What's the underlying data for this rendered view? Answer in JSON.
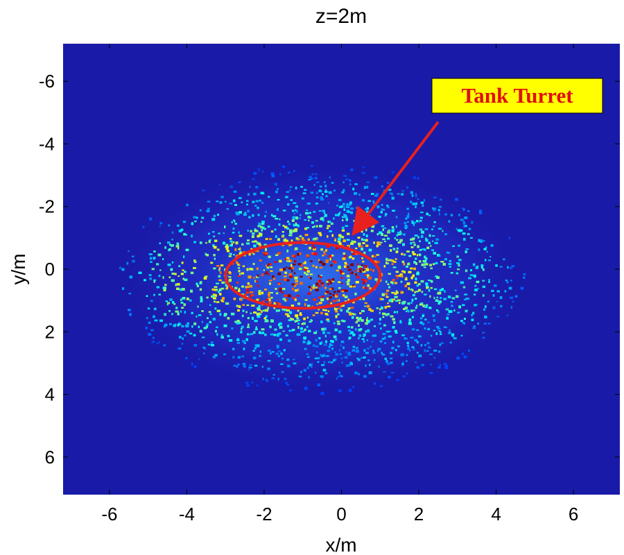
{
  "chart_data": {
    "type": "heatmap",
    "title": "z=2m",
    "xlabel": "x/m",
    "ylabel": "y/m",
    "xlim": [
      -7.2,
      7.2
    ],
    "ylim": [
      -7.2,
      7.2
    ],
    "y_axis_reversed": true,
    "xticks": [
      -6,
      -4,
      -2,
      0,
      2,
      4,
      6
    ],
    "yticks": [
      -6,
      -4,
      -2,
      0,
      2,
      4,
      6
    ],
    "grid": false,
    "colormap": "jet",
    "background_color": "#1a1aa8",
    "blob": {
      "center_x": -0.5,
      "center_y": 0.3,
      "semi_axis_x": 5.0,
      "semi_axis_y": 3.5,
      "peak_x": -0.8,
      "peak_y": 0.2,
      "peak_intensity": "high"
    },
    "annotations": [
      {
        "type": "ellipse",
        "center_x": -1.0,
        "center_y": 0.2,
        "semi_axis_x": 2.0,
        "semi_axis_y": 1.05,
        "color": "#e8201e"
      },
      {
        "type": "label",
        "text": "Tank Turret",
        "text_color": "#e01010",
        "box_color": "#ffff00",
        "arrow_color": "#e8201e",
        "arrow_from": [
          2.5,
          -4.7
        ],
        "arrow_to": [
          0.35,
          -1.2
        ]
      }
    ]
  }
}
